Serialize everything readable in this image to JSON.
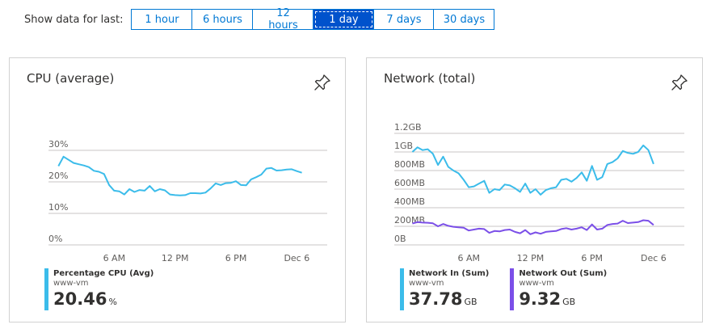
{
  "range": {
    "label": "Show data for last:",
    "options": [
      "1 hour",
      "6 hours",
      "12 hours",
      "1 day",
      "7 days",
      "30 days"
    ],
    "selected": "1 day"
  },
  "cpu_tile": {
    "title": "CPU (average)",
    "legend": [
      {
        "name": "Percentage CPU (Avg)",
        "resource": "www-vm",
        "value": "20.46",
        "unit": "%",
        "color": "#3bbcea"
      }
    ]
  },
  "net_tile": {
    "title": "Network (total)",
    "legend": [
      {
        "name": "Network In (Sum)",
        "resource": "www-vm",
        "value": "37.78",
        "unit": "GB",
        "color": "#3bbcea"
      },
      {
        "name": "Network Out (Sum)",
        "resource": "www-vm",
        "value": "9.32",
        "unit": "GB",
        "color": "#7b4fe8"
      }
    ]
  },
  "chart_data": [
    {
      "type": "line",
      "title": "CPU (average)",
      "x": [
        0.5,
        1.0,
        1.5,
        2.0,
        2.5,
        3.0,
        3.5,
        4.0,
        4.5,
        5.0,
        5.5,
        6.0,
        6.5,
        7.0,
        7.5,
        8.0,
        8.5,
        9.0,
        9.5,
        10.0,
        10.5,
        11.0,
        11.5,
        12.0,
        12.5,
        13.0,
        13.5,
        14.0,
        14.5,
        15.0,
        15.5,
        16.0,
        16.5,
        17.0,
        17.5,
        18.0,
        18.5,
        19.0,
        19.5,
        20.0,
        20.5,
        21.0,
        21.5,
        22.0,
        22.5,
        23.0,
        23.5,
        24.0,
        24.5,
        25.0,
        25.5
      ],
      "x_ticks": [
        {
          "x": 6,
          "label": "6 AM"
        },
        {
          "x": 12,
          "label": "12 PM"
        },
        {
          "x": 18,
          "label": "6 PM"
        },
        {
          "x": 24,
          "label": "Dec 6"
        }
      ],
      "xlim": [
        0,
        27
      ],
      "ylim": [
        0,
        30
      ],
      "y_ticks": [
        {
          "v": 0,
          "label": "0%"
        },
        {
          "v": 10,
          "label": "10%"
        },
        {
          "v": 20,
          "label": "20%"
        },
        {
          "v": 30,
          "label": "30%"
        }
      ],
      "series": [
        {
          "name": "Percentage CPU (Avg)",
          "color": "#3bbcea",
          "values": [
            25,
            28,
            27,
            26,
            25.6,
            25.2,
            24.7,
            23.5,
            23.2,
            22.5,
            19,
            17.2,
            17,
            16,
            17.7,
            16.8,
            17.4,
            17.2,
            18.7,
            17,
            17.7,
            17.3,
            16,
            15.8,
            15.7,
            15.8,
            16.4,
            16.4,
            16.3,
            16.6,
            17.9,
            19.5,
            19,
            19.6,
            19.7,
            20.2,
            19,
            18.9,
            20.8,
            21.5,
            22.3,
            24.2,
            24.4,
            23.6,
            23.7,
            23.9,
            24,
            23.4,
            22.9,
            null,
            null
          ]
        }
      ]
    },
    {
      "type": "line",
      "title": "Network (total)",
      "x": [
        0.5,
        1.0,
        1.5,
        2.0,
        2.5,
        3.0,
        3.5,
        4.0,
        4.5,
        5.0,
        5.5,
        6.0,
        6.5,
        7.0,
        7.5,
        8.0,
        8.5,
        9.0,
        9.5,
        10.0,
        10.5,
        11.0,
        11.5,
        12.0,
        12.5,
        13.0,
        13.5,
        14.0,
        14.5,
        15.0,
        15.5,
        16.0,
        16.5,
        17.0,
        17.5,
        18.0,
        18.5,
        19.0,
        19.5,
        20.0,
        20.5,
        21.0,
        21.5,
        22.0,
        22.5,
        23.0,
        23.5,
        24.0,
        24.5
      ],
      "x_ticks": [
        {
          "x": 6,
          "label": "6 AM"
        },
        {
          "x": 12,
          "label": "12 PM"
        },
        {
          "x": 18,
          "label": "6 PM"
        },
        {
          "x": 24,
          "label": "Dec 6"
        }
      ],
      "xlim": [
        0,
        27
      ],
      "ylim": [
        0,
        1200
      ],
      "y_ticks": [
        {
          "v": 0,
          "label": "0B"
        },
        {
          "v": 200,
          "label": "200MB"
        },
        {
          "v": 400,
          "label": "400MB"
        },
        {
          "v": 600,
          "label": "600MB"
        },
        {
          "v": 800,
          "label": "800MB"
        },
        {
          "v": 1000,
          "label": "1GB"
        },
        {
          "v": 1200,
          "label": "1.2GB"
        }
      ],
      "series": [
        {
          "name": "Network In (Sum)",
          "color": "#3bbcea",
          "values": [
            1000,
            1050,
            1020,
            1030,
            980,
            860,
            950,
            840,
            800,
            770,
            700,
            620,
            630,
            660,
            690,
            560,
            600,
            590,
            650,
            640,
            610,
            570,
            660,
            560,
            600,
            540,
            590,
            610,
            620,
            700,
            710,
            680,
            720,
            780,
            690,
            850,
            700,
            730,
            870,
            890,
            930,
            1010,
            990,
            980,
            1000,
            1070,
            1020,
            870,
            null
          ]
        },
        {
          "name": "Network Out (Sum)",
          "color": "#7b4fe8",
          "values": [
            230,
            245,
            240,
            238,
            232,
            200,
            225,
            205,
            195,
            190,
            185,
            155,
            165,
            175,
            170,
            130,
            150,
            145,
            160,
            165,
            140,
            125,
            160,
            115,
            135,
            120,
            140,
            145,
            150,
            170,
            180,
            165,
            175,
            190,
            160,
            220,
            165,
            175,
            215,
            225,
            230,
            260,
            235,
            240,
            245,
            265,
            260,
            215,
            null
          ]
        }
      ]
    }
  ]
}
